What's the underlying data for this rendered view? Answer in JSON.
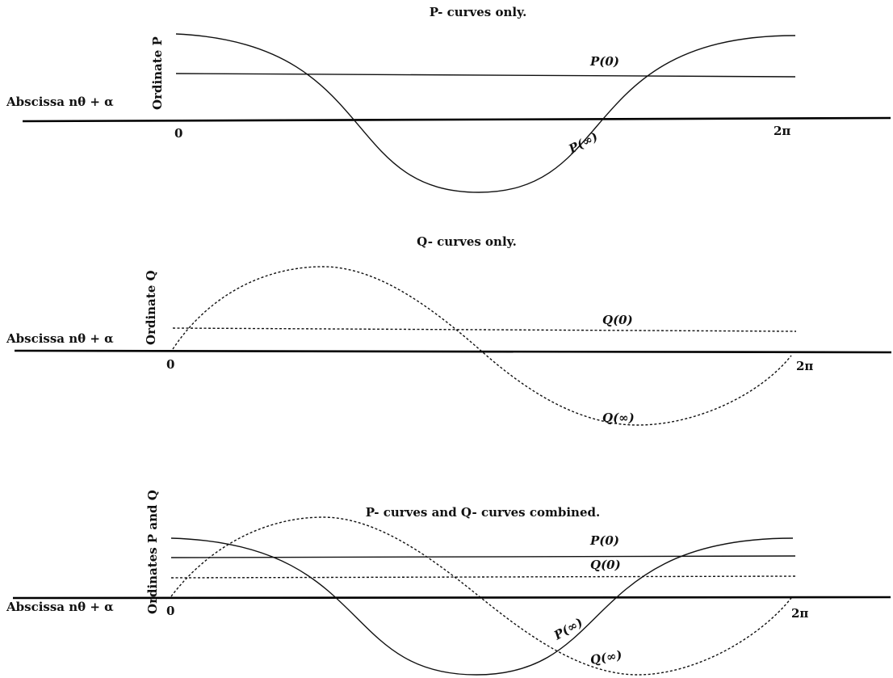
{
  "figure": {
    "panels": [
      {
        "title": "P- curves only.",
        "ordinate_label": "Ordinate P",
        "abscissa_label": "Abscissa nθ + α",
        "tick_start": "0",
        "tick_end": "2π",
        "curves": [
          {
            "label": "P(0)",
            "style": "solid",
            "kind": "constant"
          },
          {
            "label": "P(∞)",
            "style": "solid",
            "kind": "cosine"
          }
        ]
      },
      {
        "title": "Q- curves only.",
        "ordinate_label": "Ordinate Q",
        "abscissa_label": "Abscissa nθ + α",
        "tick_start": "0",
        "tick_end": "2π",
        "curves": [
          {
            "label": "Q(0)",
            "style": "dashed",
            "kind": "constant"
          },
          {
            "label": "Q(∞)",
            "style": "dashed",
            "kind": "sine"
          }
        ]
      },
      {
        "title": "P- curves and Q- curves combined.",
        "ordinate_label": "Ordinates P and Q",
        "abscissa_label": "Abscissa nθ + α",
        "tick_start": "0",
        "tick_end": "2π",
        "curves": [
          {
            "label": "P(0)",
            "style": "solid",
            "kind": "constant"
          },
          {
            "label": "Q(0)",
            "style": "dashed",
            "kind": "constant"
          },
          {
            "label": "P(∞)",
            "style": "solid",
            "kind": "cosine"
          },
          {
            "label": "Q(∞)",
            "style": "dashed",
            "kind": "sine"
          }
        ]
      }
    ]
  }
}
